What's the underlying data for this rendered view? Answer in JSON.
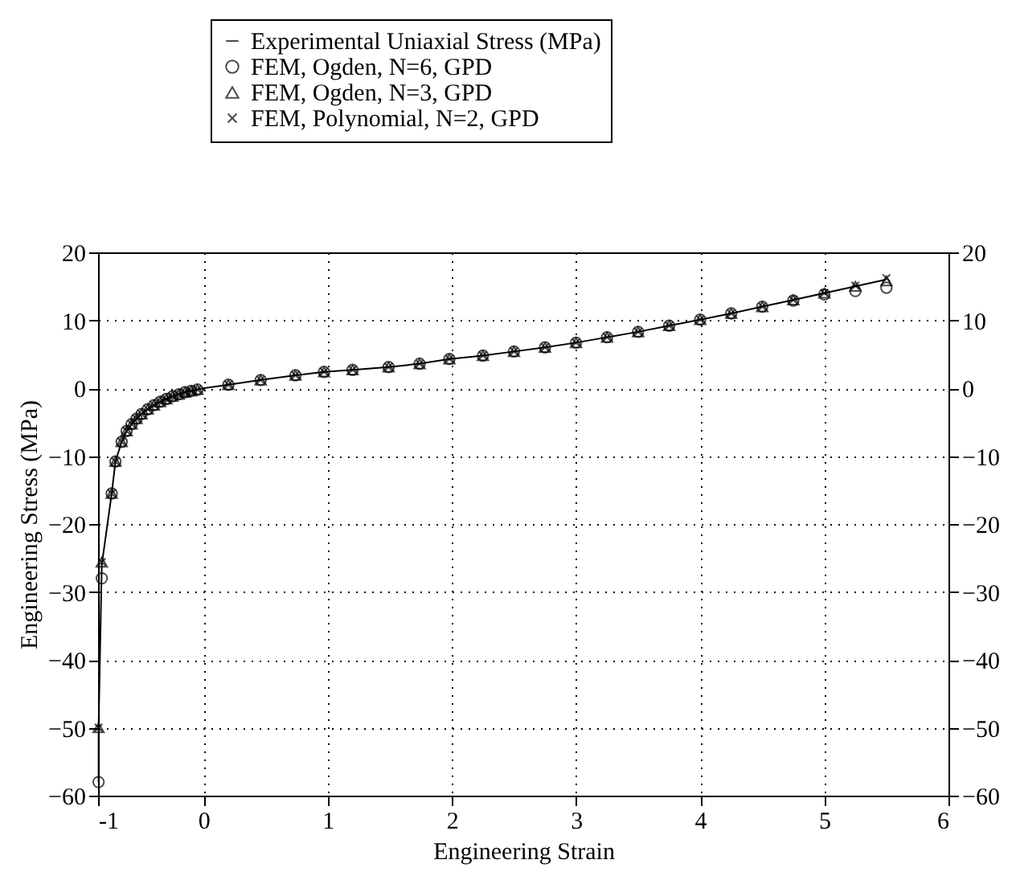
{
  "chart_data": {
    "type": "line",
    "xlabel": "Engineering Strain",
    "ylabel": "Engineering Stress (MPa)",
    "xlim": [
      -0.85,
      6
    ],
    "xticks": [
      {
        "value": -0.85,
        "label": "-1"
      },
      0,
      1,
      2,
      3,
      4,
      5,
      6
    ],
    "ylim": [
      -60,
      20
    ],
    "yticks": [
      -60,
      -50,
      -40,
      -30,
      -20,
      -10,
      0,
      10,
      20
    ],
    "y2lim": [
      -60,
      20
    ],
    "y2ticks": [
      -60,
      -50,
      -40,
      -30,
      -20,
      -10,
      0,
      10,
      20
    ],
    "grid": true,
    "legend": "top",
    "series": [
      {
        "name": "Experimental Uniaxial Stress (MPa)",
        "type": "line",
        "marker": "none",
        "color": "#000000",
        "x": [
          -0.846,
          -0.846,
          -0.82,
          -0.74,
          -0.71,
          -0.66,
          -0.62,
          -0.58,
          -0.54,
          -0.5,
          -0.45,
          -0.4,
          -0.35,
          -0.3,
          -0.25,
          -0.2,
          -0.15,
          -0.1,
          -0.05,
          0,
          0.2,
          0.46,
          0.74,
          0.97,
          1.2,
          1.49,
          1.74,
          1.98,
          2.25,
          2.5,
          2.75,
          3.0,
          3.25,
          3.5,
          3.75,
          4.0,
          4.25,
          4.5,
          4.75,
          5.0,
          5.25,
          5.5
        ],
        "values": [
          -58,
          -50,
          -26,
          -15.5,
          -10.8,
          -7.9,
          -6.3,
          -5.3,
          -4.5,
          -3.8,
          -3.1,
          -2.5,
          -2.0,
          -1.6,
          -1.2,
          -0.9,
          -0.6,
          -0.4,
          -0.2,
          0,
          0.5,
          1.2,
          1.9,
          2.4,
          2.7,
          3.1,
          3.6,
          4.3,
          4.8,
          5.4,
          6.0,
          6.7,
          7.5,
          8.3,
          9.2,
          10.1,
          11.0,
          12.0,
          13.0,
          14.0,
          15.0,
          16.0
        ]
      },
      {
        "name": "FEM, Ogden, N=6, GPD",
        "type": "scatter",
        "marker": "circle",
        "color": "#000000",
        "x": [
          -0.846,
          -0.82,
          -0.74,
          -0.71,
          -0.66,
          -0.62,
          -0.58,
          -0.54,
          -0.5,
          -0.45,
          -0.4,
          -0.35,
          -0.3,
          -0.25,
          -0.2,
          -0.15,
          -0.1,
          -0.05,
          0.2,
          0.46,
          0.74,
          0.97,
          1.2,
          1.49,
          1.74,
          1.98,
          2.25,
          2.5,
          2.75,
          3.0,
          3.25,
          3.5,
          3.75,
          4.0,
          4.25,
          4.5,
          4.75,
          5.0,
          5.25,
          5.5
        ],
        "values": [
          -58,
          -28,
          -15.5,
          -10.8,
          -7.9,
          -6.3,
          -5.3,
          -4.5,
          -3.8,
          -3.1,
          -2.5,
          -2.0,
          -1.6,
          -1.2,
          -0.9,
          -0.6,
          -0.4,
          -0.2,
          0.5,
          1.2,
          1.9,
          2.4,
          2.7,
          3.1,
          3.6,
          4.3,
          4.8,
          5.4,
          6.0,
          6.7,
          7.5,
          8.3,
          9.2,
          10.1,
          11.0,
          12.0,
          12.9,
          13.8,
          14.3,
          14.8
        ]
      },
      {
        "name": "FEM, Ogden, N=3, GPD",
        "type": "scatter",
        "marker": "triangle",
        "color": "#000000",
        "x": [
          -0.846,
          -0.82,
          -0.74,
          -0.71,
          -0.66,
          -0.62,
          -0.58,
          -0.54,
          -0.5,
          -0.45,
          -0.4,
          -0.35,
          -0.3,
          -0.25,
          -0.2,
          -0.15,
          -0.1,
          -0.05,
          0.2,
          0.46,
          0.74,
          0.97,
          1.2,
          1.49,
          1.74,
          1.98,
          2.25,
          2.5,
          2.75,
          3.0,
          3.25,
          3.5,
          3.75,
          4.0,
          4.25,
          4.5,
          4.75,
          5.0,
          5.25,
          5.5
        ],
        "values": [
          -50,
          -25.6,
          -15.5,
          -10.8,
          -7.9,
          -6.3,
          -5.3,
          -4.5,
          -3.8,
          -3.1,
          -2.5,
          -2.0,
          -1.6,
          -1.2,
          -0.9,
          -0.6,
          -0.4,
          -0.2,
          0.5,
          1.2,
          1.9,
          2.4,
          2.7,
          3.1,
          3.6,
          4.3,
          4.8,
          5.4,
          6.0,
          6.7,
          7.5,
          8.3,
          9.2,
          10.1,
          11.0,
          12.0,
          13.0,
          14.0,
          15.0,
          15.8
        ]
      },
      {
        "name": "FEM, Polynomial, N=2, GPD",
        "type": "scatter",
        "marker": "cross",
        "color": "#000000",
        "x": [
          -0.846,
          -0.82,
          -0.74,
          -0.71,
          -0.66,
          -0.62,
          -0.58,
          -0.54,
          -0.5,
          -0.45,
          -0.4,
          -0.35,
          -0.3,
          -0.25,
          -0.2,
          -0.15,
          -0.1,
          -0.05,
          0.2,
          0.46,
          0.74,
          0.97,
          1.2,
          1.49,
          1.74,
          1.98,
          2.25,
          2.5,
          2.75,
          3.0,
          3.25,
          3.5,
          3.75,
          4.0,
          4.25,
          4.5,
          4.75,
          5.0,
          5.25,
          5.5
        ],
        "values": [
          -50,
          -25.6,
          -15.5,
          -10.8,
          -7.9,
          -6.3,
          -5.3,
          -4.5,
          -3.8,
          -3.1,
          -2.5,
          -2.0,
          -1.6,
          -1.2,
          -0.9,
          -0.6,
          -0.4,
          -0.2,
          0.5,
          1.2,
          1.9,
          2.4,
          2.7,
          3.1,
          3.6,
          4.3,
          4.8,
          5.4,
          6.0,
          6.7,
          7.5,
          8.3,
          9.2,
          10.1,
          11.0,
          12.0,
          13.0,
          14.0,
          15.1,
          16.2
        ]
      }
    ]
  }
}
